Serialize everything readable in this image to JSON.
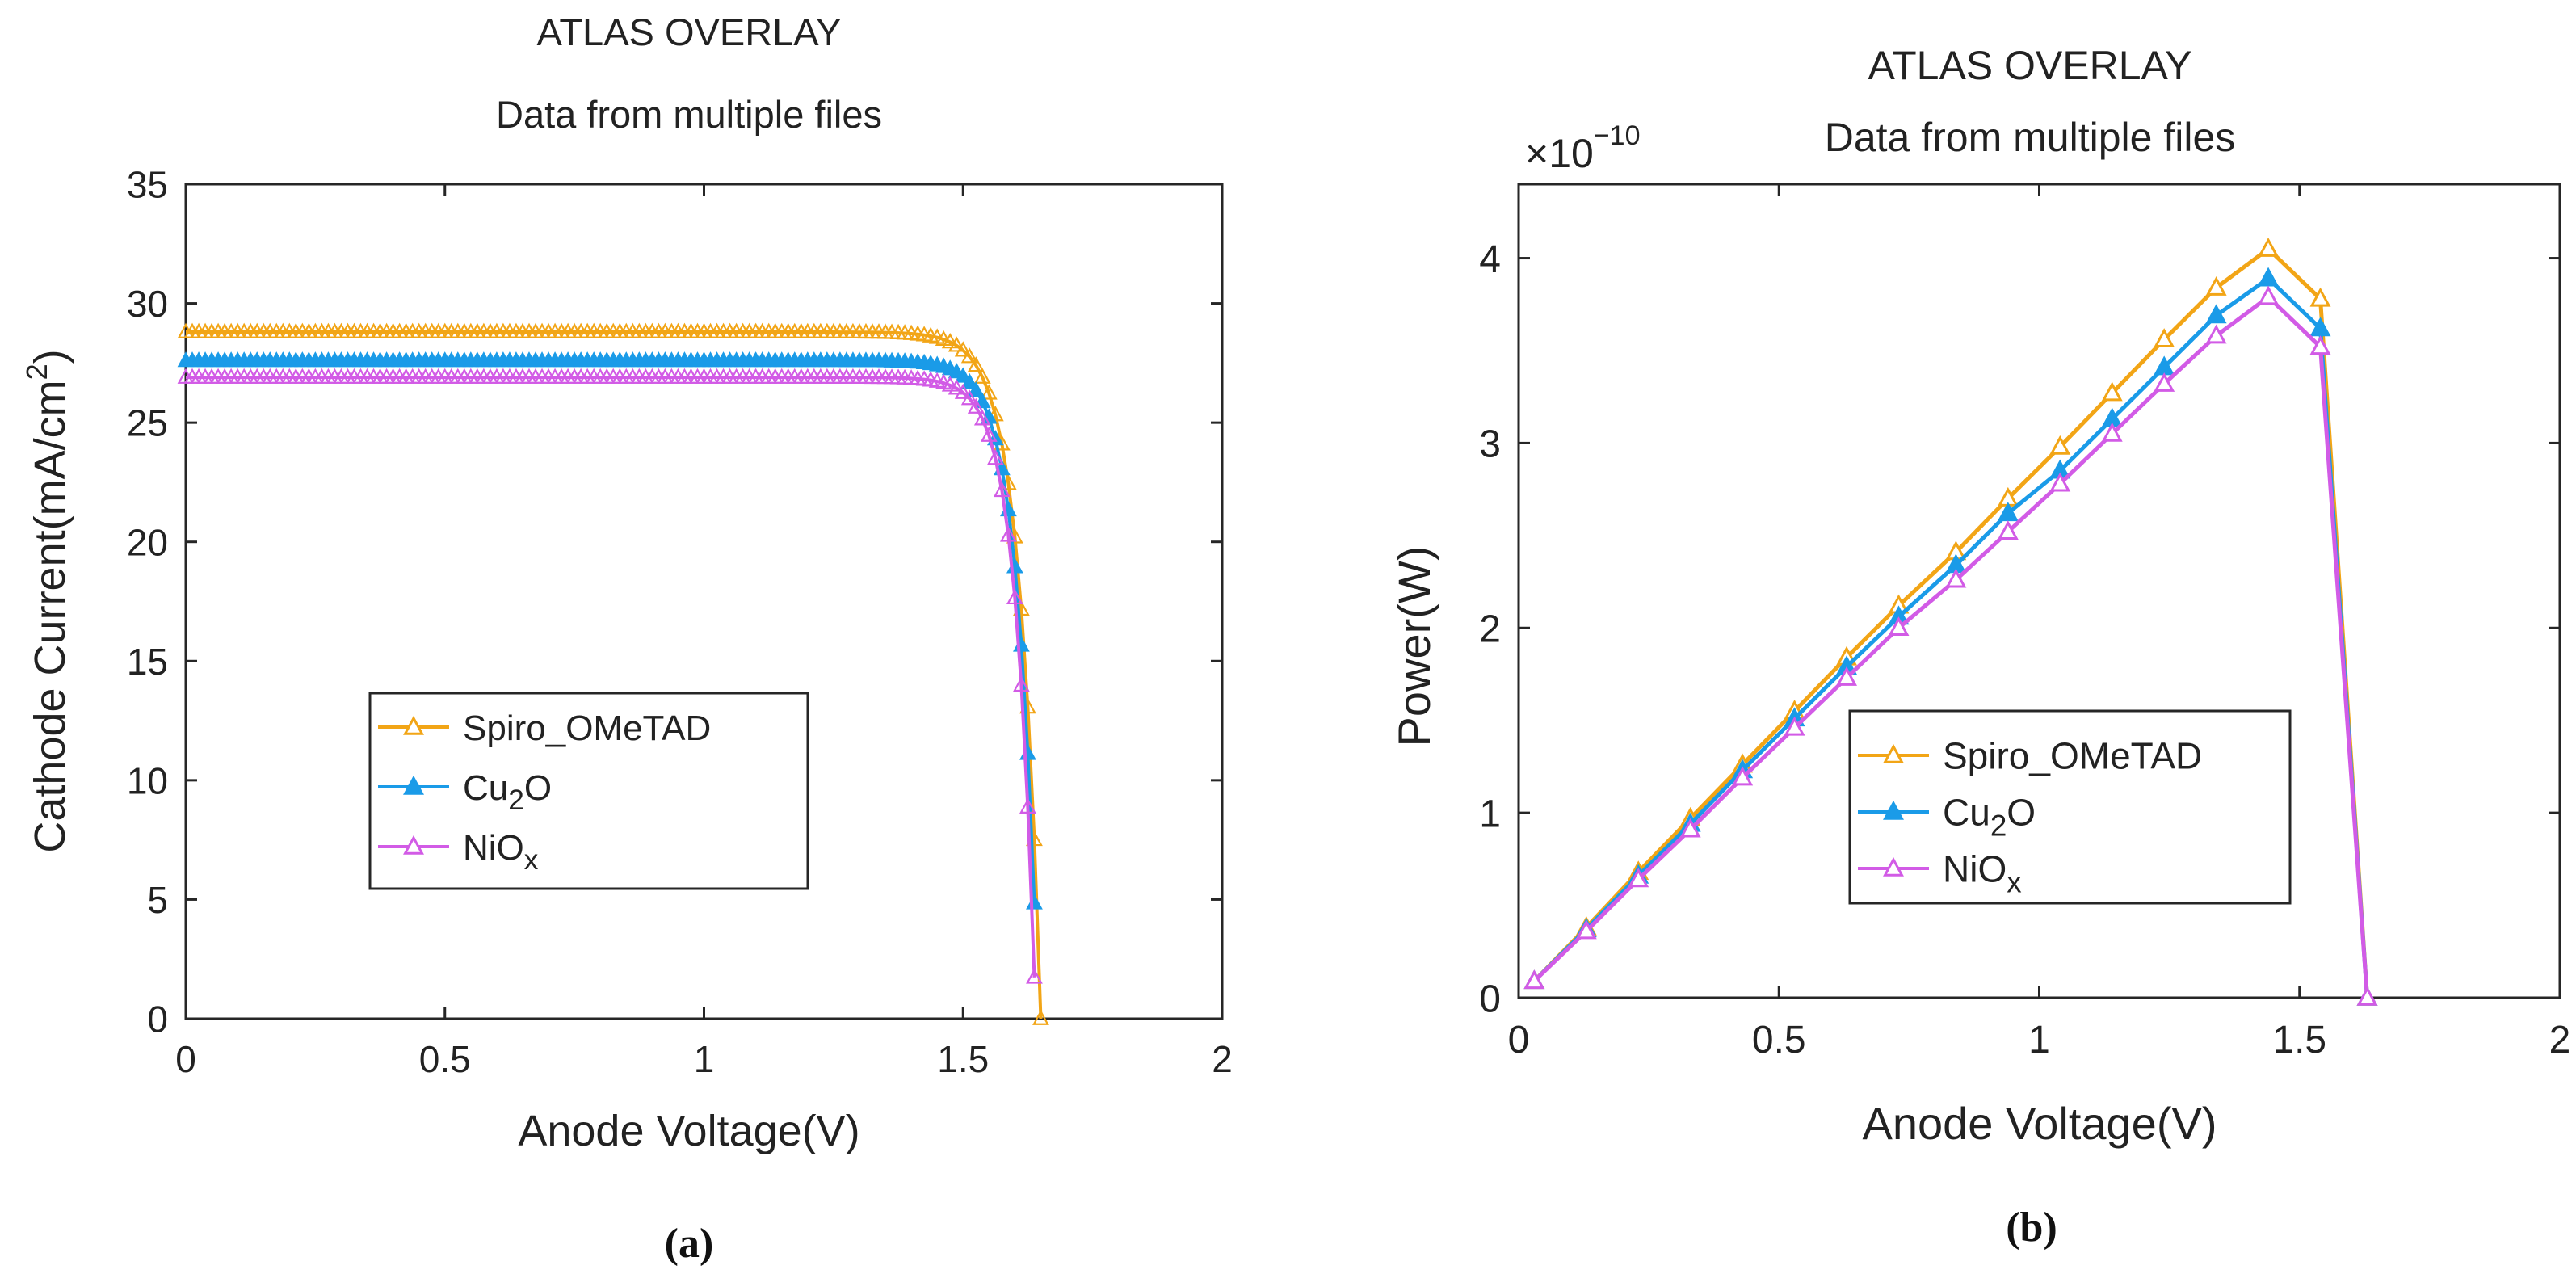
{
  "chart_data": [
    {
      "type": "line",
      "panel_label": "(a)",
      "title": "ATLAS OVERLAY",
      "subtitle": "Data from multiple files",
      "xlabel": "Anode Voltage(V)",
      "ylabel": "Cathode Current(mA/cm",
      "ylabel_superscript": "2",
      "ylabel_suffix": ")",
      "xlim": [
        0,
        2
      ],
      "ylim": [
        0,
        35
      ],
      "xticks": [
        0,
        0.5,
        1,
        1.5,
        2
      ],
      "xtick_labels": [
        "0",
        "0.5",
        "1",
        "1.5",
        "2"
      ],
      "yticks": [
        0,
        5,
        10,
        15,
        20,
        25,
        30,
        35
      ],
      "ytick_labels": [
        "0",
        "5",
        "10",
        "15",
        "20",
        "25",
        "30",
        "35"
      ],
      "grid": false,
      "legend_position": "center",
      "series": [
        {
          "name": "Spiro_OMeTAD",
          "name_main": "Spiro_OMeTAD",
          "name_sub": "",
          "name_tail": "",
          "color": "#F2A516",
          "marker": "triangle-open",
          "Jsc": 28.8,
          "Voc": 1.65,
          "n": 1.6
        },
        {
          "name": "Cu2O",
          "name_main": "Cu",
          "name_sub": "2",
          "name_tail": "O",
          "color": "#1A9BE8",
          "marker": "triangle-filled",
          "Jsc": 27.6,
          "Voc": 1.645,
          "n": 1.5
        },
        {
          "name": "NiOx",
          "name_main": "NiO",
          "name_sub": "x",
          "name_tail": "",
          "color": "#D25BE6",
          "marker": "triangle-open",
          "Jsc": 26.9,
          "Voc": 1.64,
          "n": 1.45
        }
      ]
    },
    {
      "type": "line",
      "panel_label": "(b)",
      "title": "ATLAS OVERLAY",
      "subtitle": "Data from multiple files",
      "xlabel": "Anode Voltage(V)",
      "ylabel": "Power(W)",
      "exponent_prefix": "×10",
      "exponent": "−10",
      "xlim": [
        0,
        2
      ],
      "ylim": [
        0,
        4.4
      ],
      "xticks": [
        0,
        0.5,
        1,
        1.5,
        2
      ],
      "xtick_labels": [
        "0",
        "0.5",
        "1",
        "1.5",
        "2"
      ],
      "yticks": [
        0,
        1,
        2,
        3,
        4
      ],
      "ytick_labels": [
        "0",
        "1",
        "2",
        "3",
        "4"
      ],
      "grid": false,
      "legend_position": "bottom-center",
      "x": [
        0.03,
        0.13,
        0.23,
        0.33,
        0.43,
        0.53,
        0.63,
        0.73,
        0.84,
        0.94,
        1.04,
        1.14,
        1.24,
        1.34,
        1.44,
        1.54,
        1.63
      ],
      "series": [
        {
          "name": "Spiro_OMeTAD",
          "name_main": "Spiro_OMeTAD",
          "name_sub": "",
          "name_tail": "",
          "color": "#F2A516",
          "marker": "triangle-open",
          "values": [
            0.09,
            0.38,
            0.68,
            0.97,
            1.26,
            1.55,
            1.84,
            2.12,
            2.41,
            2.7,
            2.98,
            3.27,
            3.56,
            3.84,
            4.05,
            3.78,
            0.0
          ]
        },
        {
          "name": "Cu2O",
          "name_main": "Cu",
          "name_sub": "2",
          "name_tail": "O",
          "color": "#1A9BE8",
          "marker": "triangle-filled",
          "values": [
            0.09,
            0.37,
            0.66,
            0.94,
            1.23,
            1.51,
            1.79,
            2.06,
            2.34,
            2.62,
            2.85,
            3.13,
            3.41,
            3.69,
            3.89,
            3.62,
            0.0
          ]
        },
        {
          "name": "NiOx",
          "name_main": "NiO",
          "name_sub": "x",
          "name_tail": "",
          "color": "#D25BE6",
          "marker": "triangle-open",
          "values": [
            0.09,
            0.36,
            0.64,
            0.91,
            1.19,
            1.46,
            1.73,
            2.0,
            2.26,
            2.52,
            2.78,
            3.05,
            3.32,
            3.58,
            3.79,
            3.52,
            0.0
          ]
        }
      ]
    }
  ]
}
